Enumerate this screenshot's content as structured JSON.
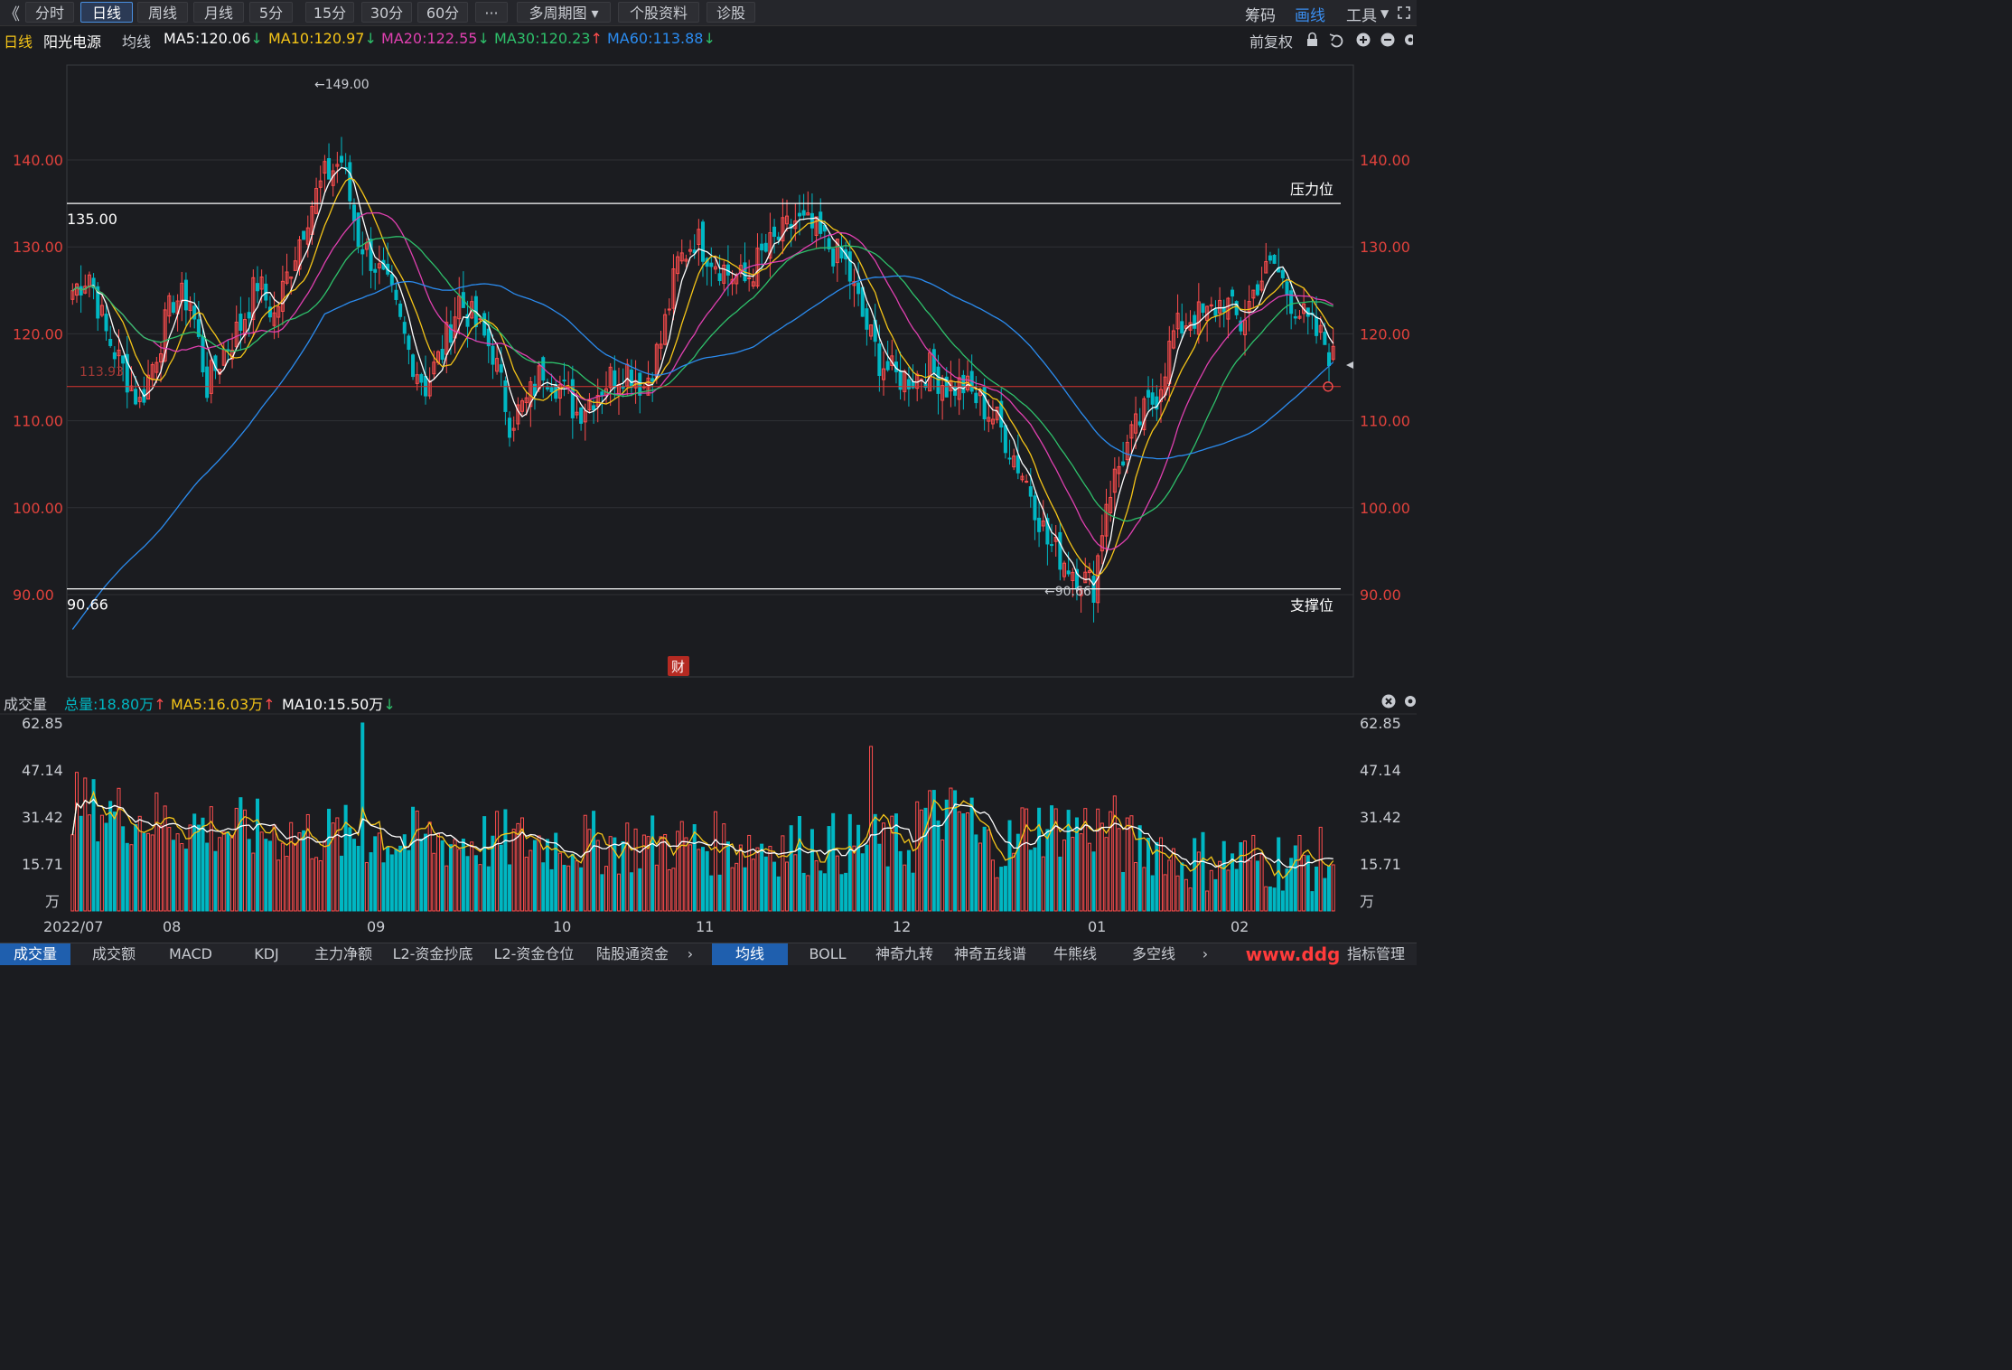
{
  "toolbar": {
    "back": "《",
    "periods": [
      "分时",
      "日线",
      "周线",
      "月线",
      "5分",
      "15分",
      "30分",
      "60分",
      "···",
      "多周期图",
      "个股资料",
      "诊股"
    ],
    "active_period": "日线",
    "right": [
      "筹码",
      "画线",
      "工具"
    ],
    "active_right": "画线"
  },
  "info": {
    "period": "日线",
    "stock_name": "阳光电源",
    "ma_label": "均线",
    "ma5": "MA5:120.06",
    "ma10": "MA10:120.97",
    "ma20": "MA20:122.55",
    "ma30": "MA30:120.23",
    "ma60": "MA60:113.88",
    "adjust": "前复权"
  },
  "colors": {
    "up": "#ff4d4d",
    "down": "#00b7c3",
    "ma5": "#ffffff",
    "ma10": "#f5c518",
    "ma20": "#e040b0",
    "ma30": "#2ec16b",
    "ma60": "#2b8cf0",
    "axis_price": "#e0423c"
  },
  "price_chart": {
    "y_ticks": [
      "140.00",
      "130.00",
      "120.00",
      "110.00",
      "100.00",
      "90.00"
    ],
    "resistance_value": "135.00",
    "resistance_label": "压力位",
    "support_value": "90.66",
    "support_label": "支撑位",
    "high_label": "←149.00",
    "low_label": "←90.66",
    "current_line_label": "113.93",
    "news_badge": "财"
  },
  "volume": {
    "title": "成交量",
    "total": "总量:18.80万",
    "ma5": "MA5:16.03万",
    "ma10": "MA10:15.50万",
    "y_ticks": [
      "62.85",
      "47.14",
      "31.42",
      "15.71",
      "万"
    ],
    "unit": "万"
  },
  "x_axis": [
    "2022/07",
    "08",
    "09",
    "10",
    "11",
    "12",
    "01",
    "02"
  ],
  "bottom_tabs_left": [
    "成交量",
    "成交额",
    "MACD",
    "KDJ",
    "主力净额",
    "L2-资金抄底",
    "L2-资金仓位",
    "陆股通资金"
  ],
  "bottom_tabs_right": [
    "均线",
    "BOLL",
    "神奇九转",
    "神奇五线谱",
    "牛熊线",
    "多空线",
    "指标管理"
  ],
  "watermark": "www.ddg"
}
